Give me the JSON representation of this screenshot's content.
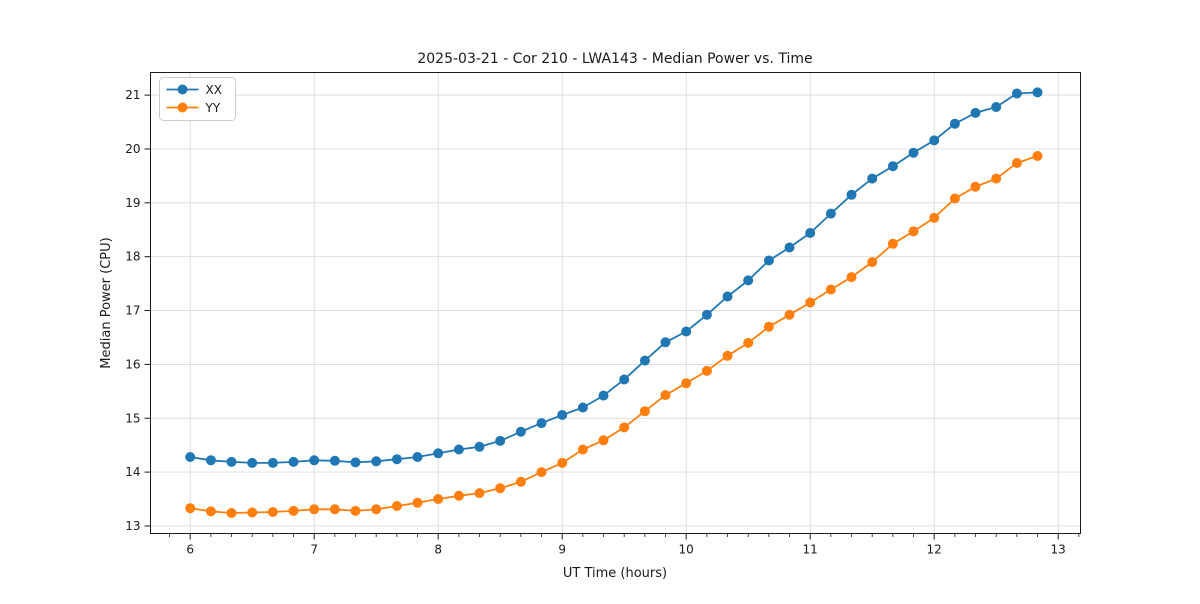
{
  "figure": {
    "background": "#ffffff"
  },
  "chart_data": {
    "type": "line",
    "title": "2025-03-21 - Cor 210 - LWA143 - Median Power vs. Time",
    "xlabel": "UT Time (hours)",
    "ylabel": "Median Power (CPU)",
    "xlim": [
      5.68,
      13.18
    ],
    "ylim": [
      12.86,
      21.42
    ],
    "xticks": [
      6,
      7,
      8,
      9,
      10,
      11,
      12,
      13
    ],
    "yticks": [
      13,
      14,
      15,
      16,
      17,
      18,
      19,
      20,
      21
    ],
    "x_minor_step": 0.1667,
    "grid": true,
    "grid_color": "#dcdcdc",
    "spine_color": "#1a1a1a",
    "legend_position": "upper-left",
    "x": [
      6.0,
      6.167,
      6.333,
      6.5,
      6.667,
      6.833,
      7.0,
      7.167,
      7.333,
      7.5,
      7.667,
      7.833,
      8.0,
      8.167,
      8.333,
      8.5,
      8.667,
      8.833,
      9.0,
      9.167,
      9.333,
      9.5,
      9.667,
      9.833,
      10.0,
      10.167,
      10.333,
      10.5,
      10.667,
      10.833,
      11.0,
      11.167,
      11.333,
      11.5,
      11.667,
      11.833,
      12.0,
      12.167,
      12.333,
      12.5,
      12.667,
      12.833
    ],
    "series": [
      {
        "name": "XX",
        "color": "#1f77b4",
        "values": [
          14.28,
          14.22,
          14.19,
          14.17,
          14.17,
          14.19,
          14.22,
          14.21,
          14.18,
          14.2,
          14.24,
          14.28,
          14.35,
          14.42,
          14.47,
          14.58,
          14.75,
          14.91,
          15.06,
          15.2,
          15.42,
          15.72,
          16.07,
          16.41,
          16.61,
          16.92,
          17.26,
          17.56,
          17.93,
          18.17,
          18.44,
          18.8,
          19.15,
          19.45,
          19.68,
          19.93,
          20.16,
          20.47,
          20.67,
          20.78,
          21.03,
          21.05
        ]
      },
      {
        "name": "YY",
        "color": "#ff7f0e",
        "values": [
          13.33,
          13.27,
          13.24,
          13.25,
          13.26,
          13.28,
          13.31,
          13.31,
          13.28,
          13.31,
          13.37,
          13.43,
          13.5,
          13.56,
          13.61,
          13.7,
          13.82,
          14.0,
          14.17,
          14.42,
          14.59,
          14.83,
          15.13,
          15.43,
          15.65,
          15.88,
          16.16,
          16.4,
          16.7,
          16.92,
          17.15,
          17.39,
          17.62,
          17.9,
          18.24,
          18.47,
          18.72,
          19.08,
          19.3,
          19.45,
          19.74,
          19.87
        ]
      }
    ]
  }
}
